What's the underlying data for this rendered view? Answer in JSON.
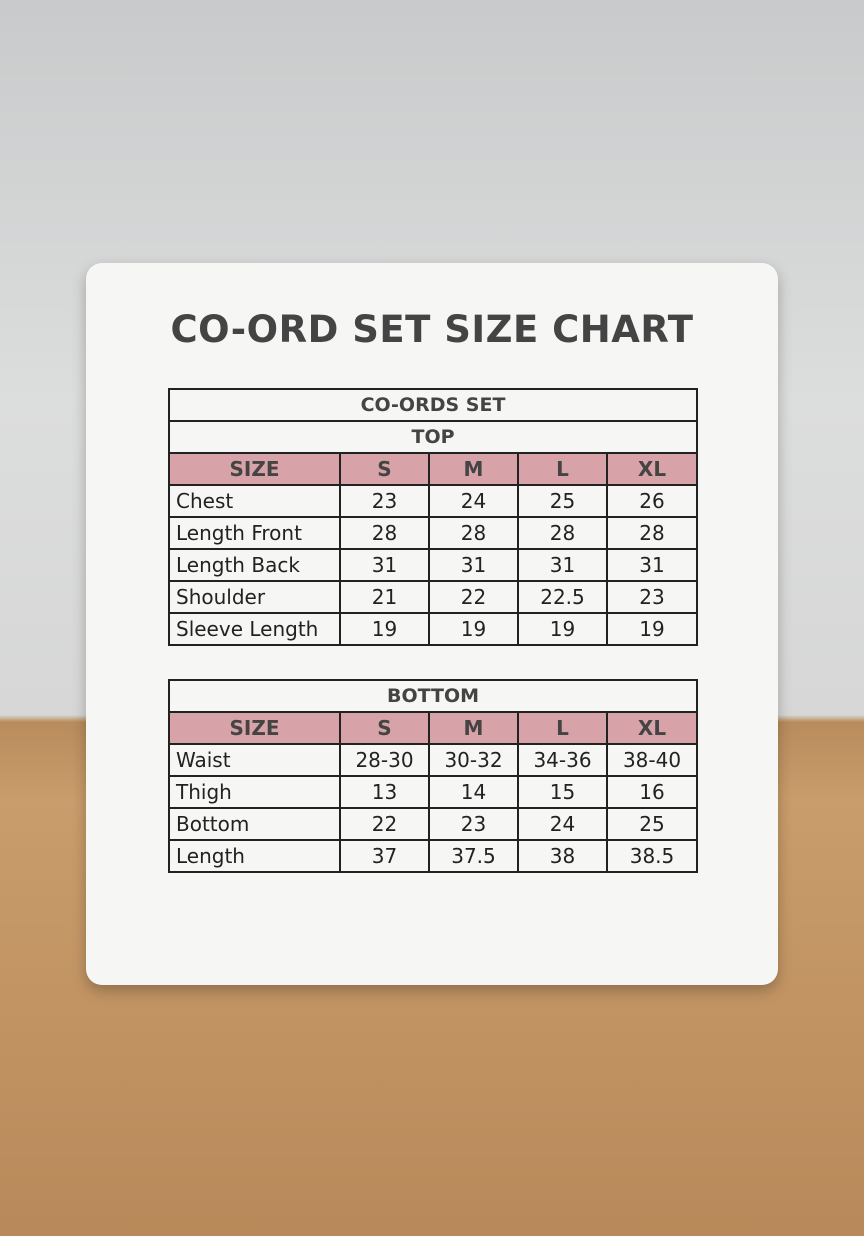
{
  "title": "CO-ORD SET SIZE CHART",
  "top_table": {
    "caption": "CO-ORDS SET",
    "section": "TOP",
    "columns": [
      "SIZE",
      "S",
      "M",
      "L",
      "XL"
    ],
    "rows": [
      [
        "Chest",
        "23",
        "24",
        "25",
        "26"
      ],
      [
        "Length Front",
        "28",
        "28",
        "28",
        "28"
      ],
      [
        "Length Back",
        "31",
        "31",
        "31",
        "31"
      ],
      [
        "Shoulder",
        "21",
        "22",
        "22.5",
        "23"
      ],
      [
        "Sleeve Length",
        "19",
        "19",
        "19",
        "19"
      ]
    ]
  },
  "bottom_table": {
    "section": "BOTTOM",
    "columns": [
      "SIZE",
      "S",
      "M",
      "L",
      "XL"
    ],
    "rows": [
      [
        "Waist",
        "28-30",
        "30-32",
        "34-36",
        "38-40"
      ],
      [
        "Thigh",
        "13",
        "14",
        "15",
        "16"
      ],
      [
        "Bottom",
        "22",
        "23",
        "24",
        "25"
      ],
      [
        "Length",
        "37",
        "37.5",
        "38",
        "38.5"
      ]
    ]
  }
}
